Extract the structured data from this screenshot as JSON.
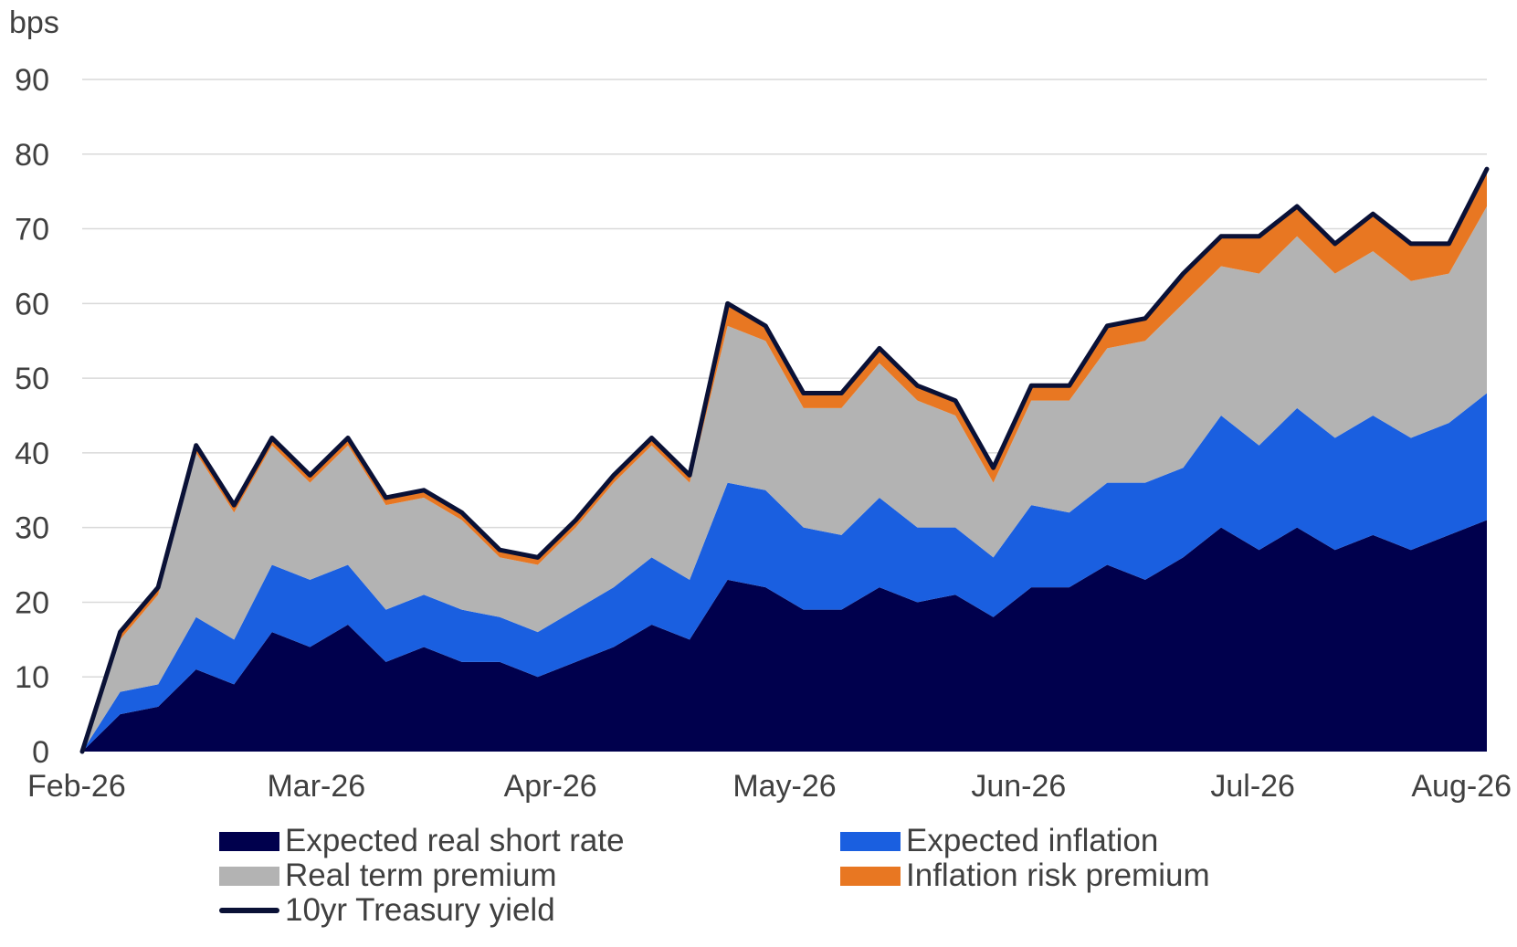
{
  "chart_data": {
    "type": "area",
    "ylabel": "bps",
    "ylim": [
      0,
      90
    ],
    "yticks": [
      "0",
      "10",
      "20",
      "30",
      "40",
      "50",
      "60",
      "70",
      "80",
      "90"
    ],
    "xticks": [
      "Feb-26",
      "Mar-26",
      "Apr-26",
      "May-26",
      "Jun-26",
      "Jul-26",
      "Aug-26"
    ],
    "grid": "horizontal",
    "legend_position": "bottom",
    "x": [
      0,
      5,
      10,
      15,
      20,
      25,
      30,
      35,
      40,
      45,
      50,
      55,
      60,
      65,
      70,
      75,
      80,
      85,
      90,
      95,
      100,
      105,
      110,
      115,
      120,
      125,
      130,
      135,
      140,
      145,
      150,
      155,
      160,
      165,
      170,
      175,
      180,
      185
    ],
    "series": [
      {
        "name": "Expected real short rate",
        "color": "#00004D",
        "kind": "stack",
        "values": [
          0,
          5,
          6,
          11,
          9,
          16,
          14,
          17,
          12,
          14,
          12,
          12,
          10,
          12,
          14,
          17,
          15,
          23,
          22,
          19,
          19,
          22,
          20,
          21,
          18,
          22,
          22,
          25,
          23,
          26,
          30,
          27,
          30,
          27,
          29,
          27,
          29,
          31
        ]
      },
      {
        "name": "Expected inflation",
        "color": "#1A5FE0",
        "kind": "stack",
        "values": [
          0,
          3,
          3,
          7,
          6,
          9,
          9,
          8,
          7,
          7,
          7,
          6,
          6,
          7,
          8,
          9,
          8,
          13,
          13,
          11,
          10,
          12,
          10,
          9,
          8,
          11,
          10,
          11,
          13,
          12,
          15,
          14,
          16,
          15,
          16,
          15,
          15,
          17
        ]
      },
      {
        "name": "Real term premium",
        "color": "#B3B3B3",
        "kind": "stack",
        "values": [
          0,
          7,
          12,
          22,
          17,
          16,
          13,
          16,
          14,
          13,
          12,
          8,
          9,
          11,
          14,
          15,
          13,
          21,
          20,
          16,
          17,
          18,
          17,
          15,
          10,
          14,
          15,
          18,
          19,
          22,
          20,
          23,
          23,
          22,
          22,
          21,
          20,
          25
        ]
      },
      {
        "name": "Inflation risk premium",
        "color": "#E87722",
        "kind": "stack",
        "values": [
          0,
          1,
          1,
          1,
          1,
          1,
          1,
          1,
          1,
          1,
          1,
          1,
          1,
          1,
          1,
          1,
          1,
          3,
          2,
          2,
          2,
          2,
          2,
          2,
          2,
          2,
          2,
          3,
          3,
          4,
          4,
          5,
          4,
          4,
          5,
          5,
          4,
          5
        ]
      },
      {
        "name": "10yr Treasury yield",
        "color": "#0A1136",
        "kind": "line",
        "values": [
          0,
          16,
          22,
          41,
          33,
          42,
          37,
          42,
          34,
          35,
          32,
          27,
          26,
          31,
          37,
          42,
          37,
          60,
          57,
          48,
          48,
          54,
          49,
          47,
          38,
          49,
          49,
          57,
          58,
          64,
          69,
          69,
          73,
          68,
          72,
          68,
          68,
          78
        ]
      }
    ]
  }
}
